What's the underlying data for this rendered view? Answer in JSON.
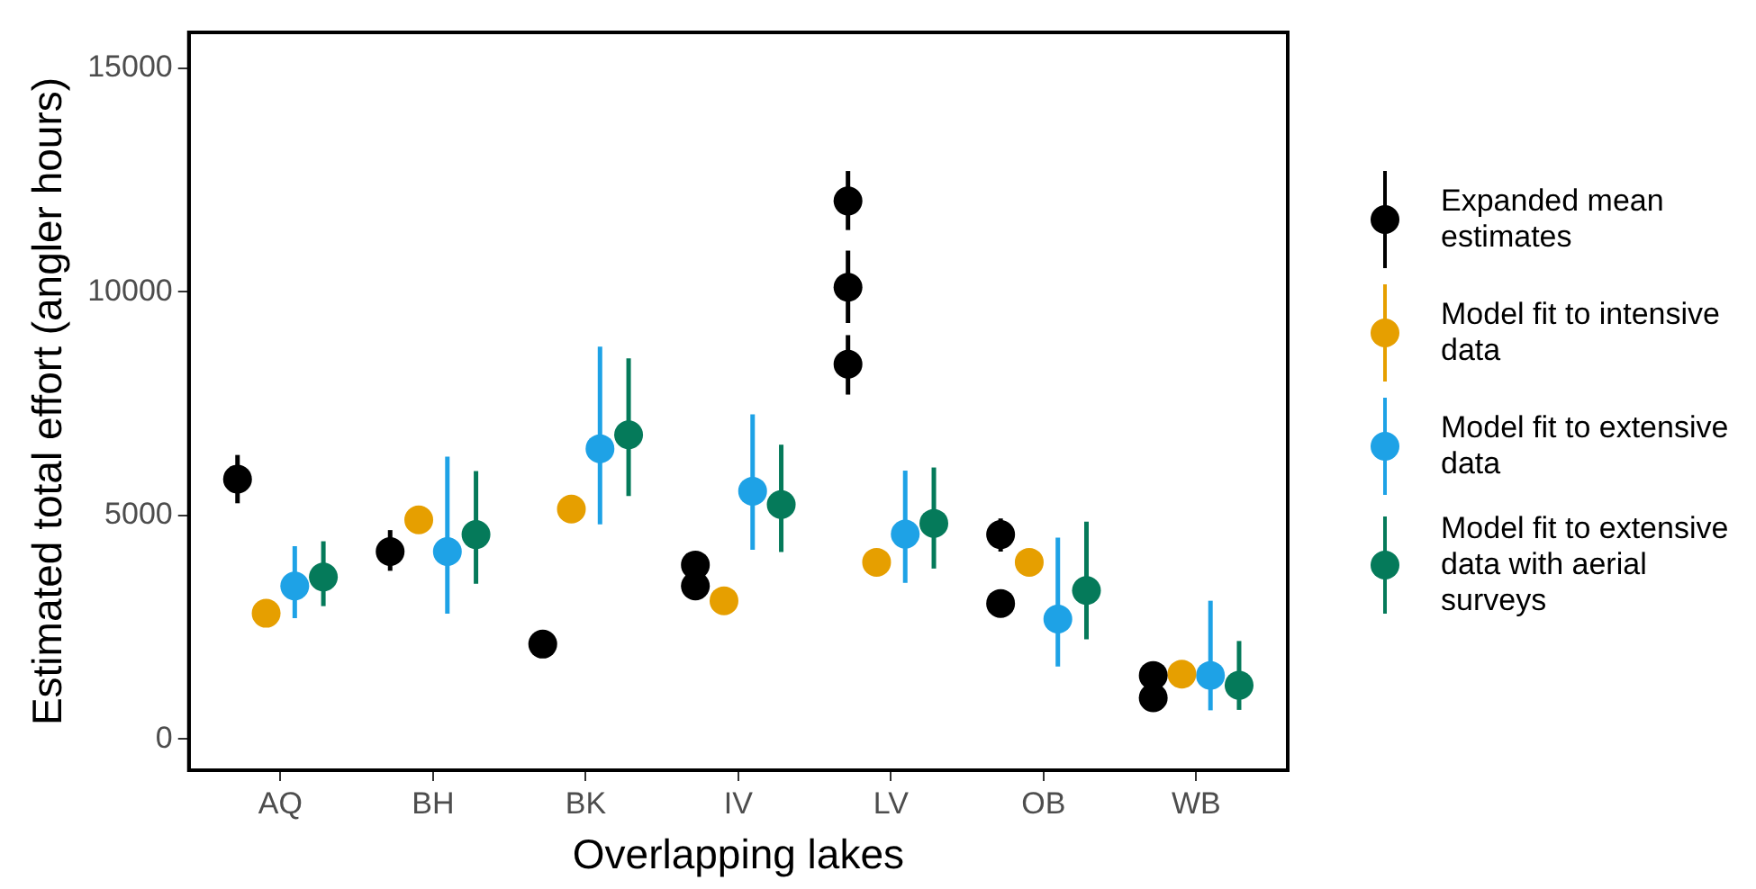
{
  "chart_data": {
    "type": "scatter",
    "xlabel": "Overlapping lakes",
    "ylabel": "Estimated total effort (angler hours)",
    "categories": [
      "AQ",
      "BH",
      "BK",
      "IV",
      "LV",
      "OB",
      "WB"
    ],
    "ylim": [
      -700,
      15800
    ],
    "yticks": [
      0,
      5000,
      10000,
      15000
    ],
    "grid": false,
    "legend": "right",
    "marker": "circle",
    "series": [
      {
        "name": "Expanded mean estimates",
        "color": "#000000",
        "x": [
          "AQ",
          "BH",
          "BK",
          "IV",
          "IV",
          "LV",
          "LV",
          "LV",
          "OB",
          "OB",
          "WB",
          "WB"
        ],
        "values": [
          5810,
          4190,
          2120,
          3890,
          3420,
          12030,
          10100,
          8380,
          4570,
          3030,
          1420,
          920
        ],
        "errors": [
          [
            5270,
            6350
          ],
          [
            3760,
            4670
          ],
          null,
          null,
          null,
          [
            11380,
            12700
          ],
          [
            9300,
            10920
          ],
          [
            7700,
            9030
          ],
          [
            4190,
            4930
          ],
          null,
          null,
          null
        ]
      },
      {
        "name": "Model fit to intensive data",
        "color": "#e69f00",
        "x": [
          "AQ",
          "BH",
          "BK",
          "IV",
          "LV",
          "OB",
          "WB"
        ],
        "values": [
          2810,
          4900,
          5140,
          3090,
          3950,
          3950,
          1450
        ]
      },
      {
        "name": "Model fit to extensive data",
        "color": "#1ea2e6",
        "x": [
          "AQ",
          "BH",
          "BK",
          "IV",
          "LV",
          "OB",
          "WB"
        ],
        "values": [
          3420,
          4190,
          6490,
          5540,
          4580,
          2680,
          1420
        ],
        "errors": [
          [
            2700,
            4310
          ],
          [
            2800,
            6310
          ],
          [
            4800,
            8770
          ],
          [
            4230,
            7260
          ],
          [
            3490,
            6000
          ],
          [
            1620,
            4500
          ],
          [
            640,
            3090
          ]
        ]
      },
      {
        "name": "Model fit to extensive data with aerial surveys",
        "color": "#057a5a",
        "x": [
          "AQ",
          "BH",
          "BK",
          "IV",
          "LV",
          "OB",
          "WB"
        ],
        "values": [
          3620,
          4570,
          6800,
          5240,
          4820,
          3320,
          1200
        ],
        "errors": [
          [
            2970,
            4420
          ],
          [
            3470,
            5990
          ],
          [
            5430,
            8510
          ],
          [
            4180,
            6580
          ],
          [
            3810,
            6070
          ],
          [
            2230,
            4860
          ],
          [
            650,
            2190
          ]
        ]
      }
    ]
  }
}
